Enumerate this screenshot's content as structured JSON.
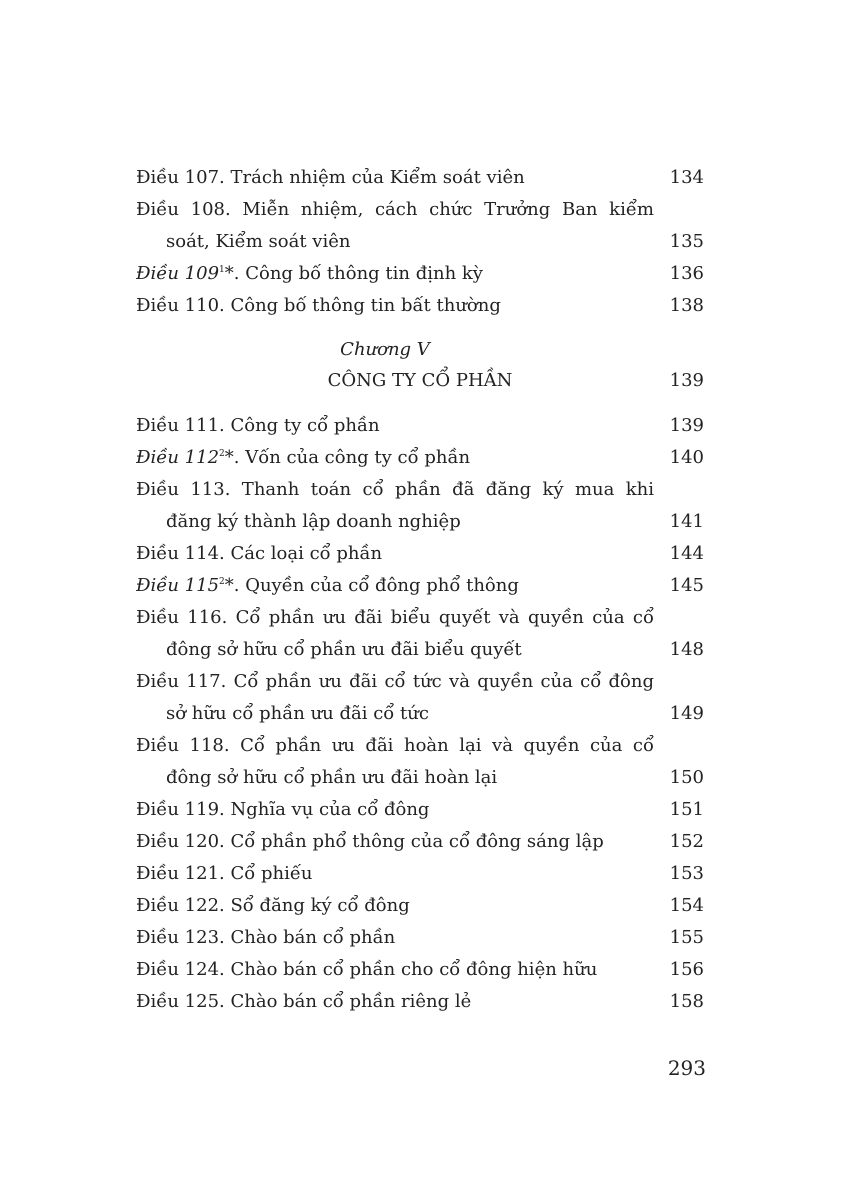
{
  "group1": [
    {
      "label": "Điều 107",
      "sup": "",
      "italic": false,
      "rest": ". Trách nhiệm của Kiểm soát viên",
      "line2": "",
      "page": "134"
    },
    {
      "label": "Điều 108",
      "sup": "",
      "italic": false,
      "rest": ". Miễn nhiệm, cách chức Trưởng Ban kiểm",
      "line2": "soát, Kiểm soát viên",
      "page": "135"
    },
    {
      "label": "Điều 109",
      "sup": "1",
      "italic": true,
      "rest": "*. Công bố thông tin định kỳ",
      "line2": "",
      "page": "136"
    },
    {
      "label": "Điều 110",
      "sup": "",
      "italic": false,
      "rest": ". Công bố thông tin bất thường",
      "line2": "",
      "page": "138"
    }
  ],
  "chapter": {
    "number": "Chương V",
    "title": "CÔNG TY CỔ PHẦN",
    "page": "139"
  },
  "group2": [
    {
      "label": "Điều 111",
      "sup": "",
      "italic": false,
      "rest": ". Công ty cổ phần",
      "line2": "",
      "page": "139"
    },
    {
      "label": "Điều 112",
      "sup": "2",
      "italic": true,
      "rest": "*. Vốn của công ty cổ phần",
      "line2": "",
      "page": "140"
    },
    {
      "label": "Điều 113",
      "sup": "",
      "italic": false,
      "rest": ". Thanh toán cổ phần đã đăng ký mua khi",
      "line2": "đăng ký thành lập doanh nghiệp",
      "page": "141"
    },
    {
      "label": "Điều 114",
      "sup": "",
      "italic": false,
      "rest": ". Các loại cổ phần",
      "line2": "",
      "page": "144"
    },
    {
      "label": "Điều 115",
      "sup": "2",
      "italic": true,
      "rest": "*. Quyền của cổ đông phổ thông",
      "line2": "",
      "page": "145"
    },
    {
      "label": "Điều 116",
      "sup": "",
      "italic": false,
      "rest": ". Cổ phần ưu đãi biểu quyết và quyền của cổ",
      "line2": "đông sở hữu cổ phần ưu đãi biểu quyết",
      "page": "148"
    },
    {
      "label": "Điều 117",
      "sup": "",
      "italic": false,
      "rest": ". Cổ phần ưu đãi cổ tức và quyền của cổ đông",
      "line2": "sở hữu cổ phần ưu đãi cổ tức",
      "page": "149"
    },
    {
      "label": "Điều 118",
      "sup": "",
      "italic": false,
      "rest": ". Cổ phần ưu đãi hoàn lại và quyền của cổ",
      "line2": "đông sở hữu cổ phần ưu đãi hoàn lại",
      "page": "150"
    },
    {
      "label": "Điều 119",
      "sup": "",
      "italic": false,
      "rest": ". Nghĩa vụ của cổ đông",
      "line2": "",
      "page": "151"
    },
    {
      "label": "Điều 120",
      "sup": "",
      "italic": false,
      "rest": ". Cổ phần phổ thông của cổ đông sáng lập",
      "line2": "",
      "page": "152"
    },
    {
      "label": "Điều 121",
      "sup": "",
      "italic": false,
      "rest": ". Cổ phiếu",
      "line2": "",
      "page": "153"
    },
    {
      "label": "Điều 122",
      "sup": "",
      "italic": false,
      "rest": ". Sổ đăng ký cổ đông",
      "line2": "",
      "page": "154"
    },
    {
      "label": "Điều 123",
      "sup": "",
      "italic": false,
      "rest": ". Chào bán cổ phần",
      "line2": "",
      "page": "155"
    },
    {
      "label": "Điều 124",
      "sup": "",
      "italic": false,
      "rest": ". Chào bán cổ phần cho cổ đông hiện hữu",
      "line2": "",
      "page": "156"
    },
    {
      "label": "Điều 125",
      "sup": "",
      "italic": false,
      "rest": ". Chào bán cổ phần riêng lẻ",
      "line2": "",
      "page": "158"
    }
  ],
  "page_number": "293"
}
